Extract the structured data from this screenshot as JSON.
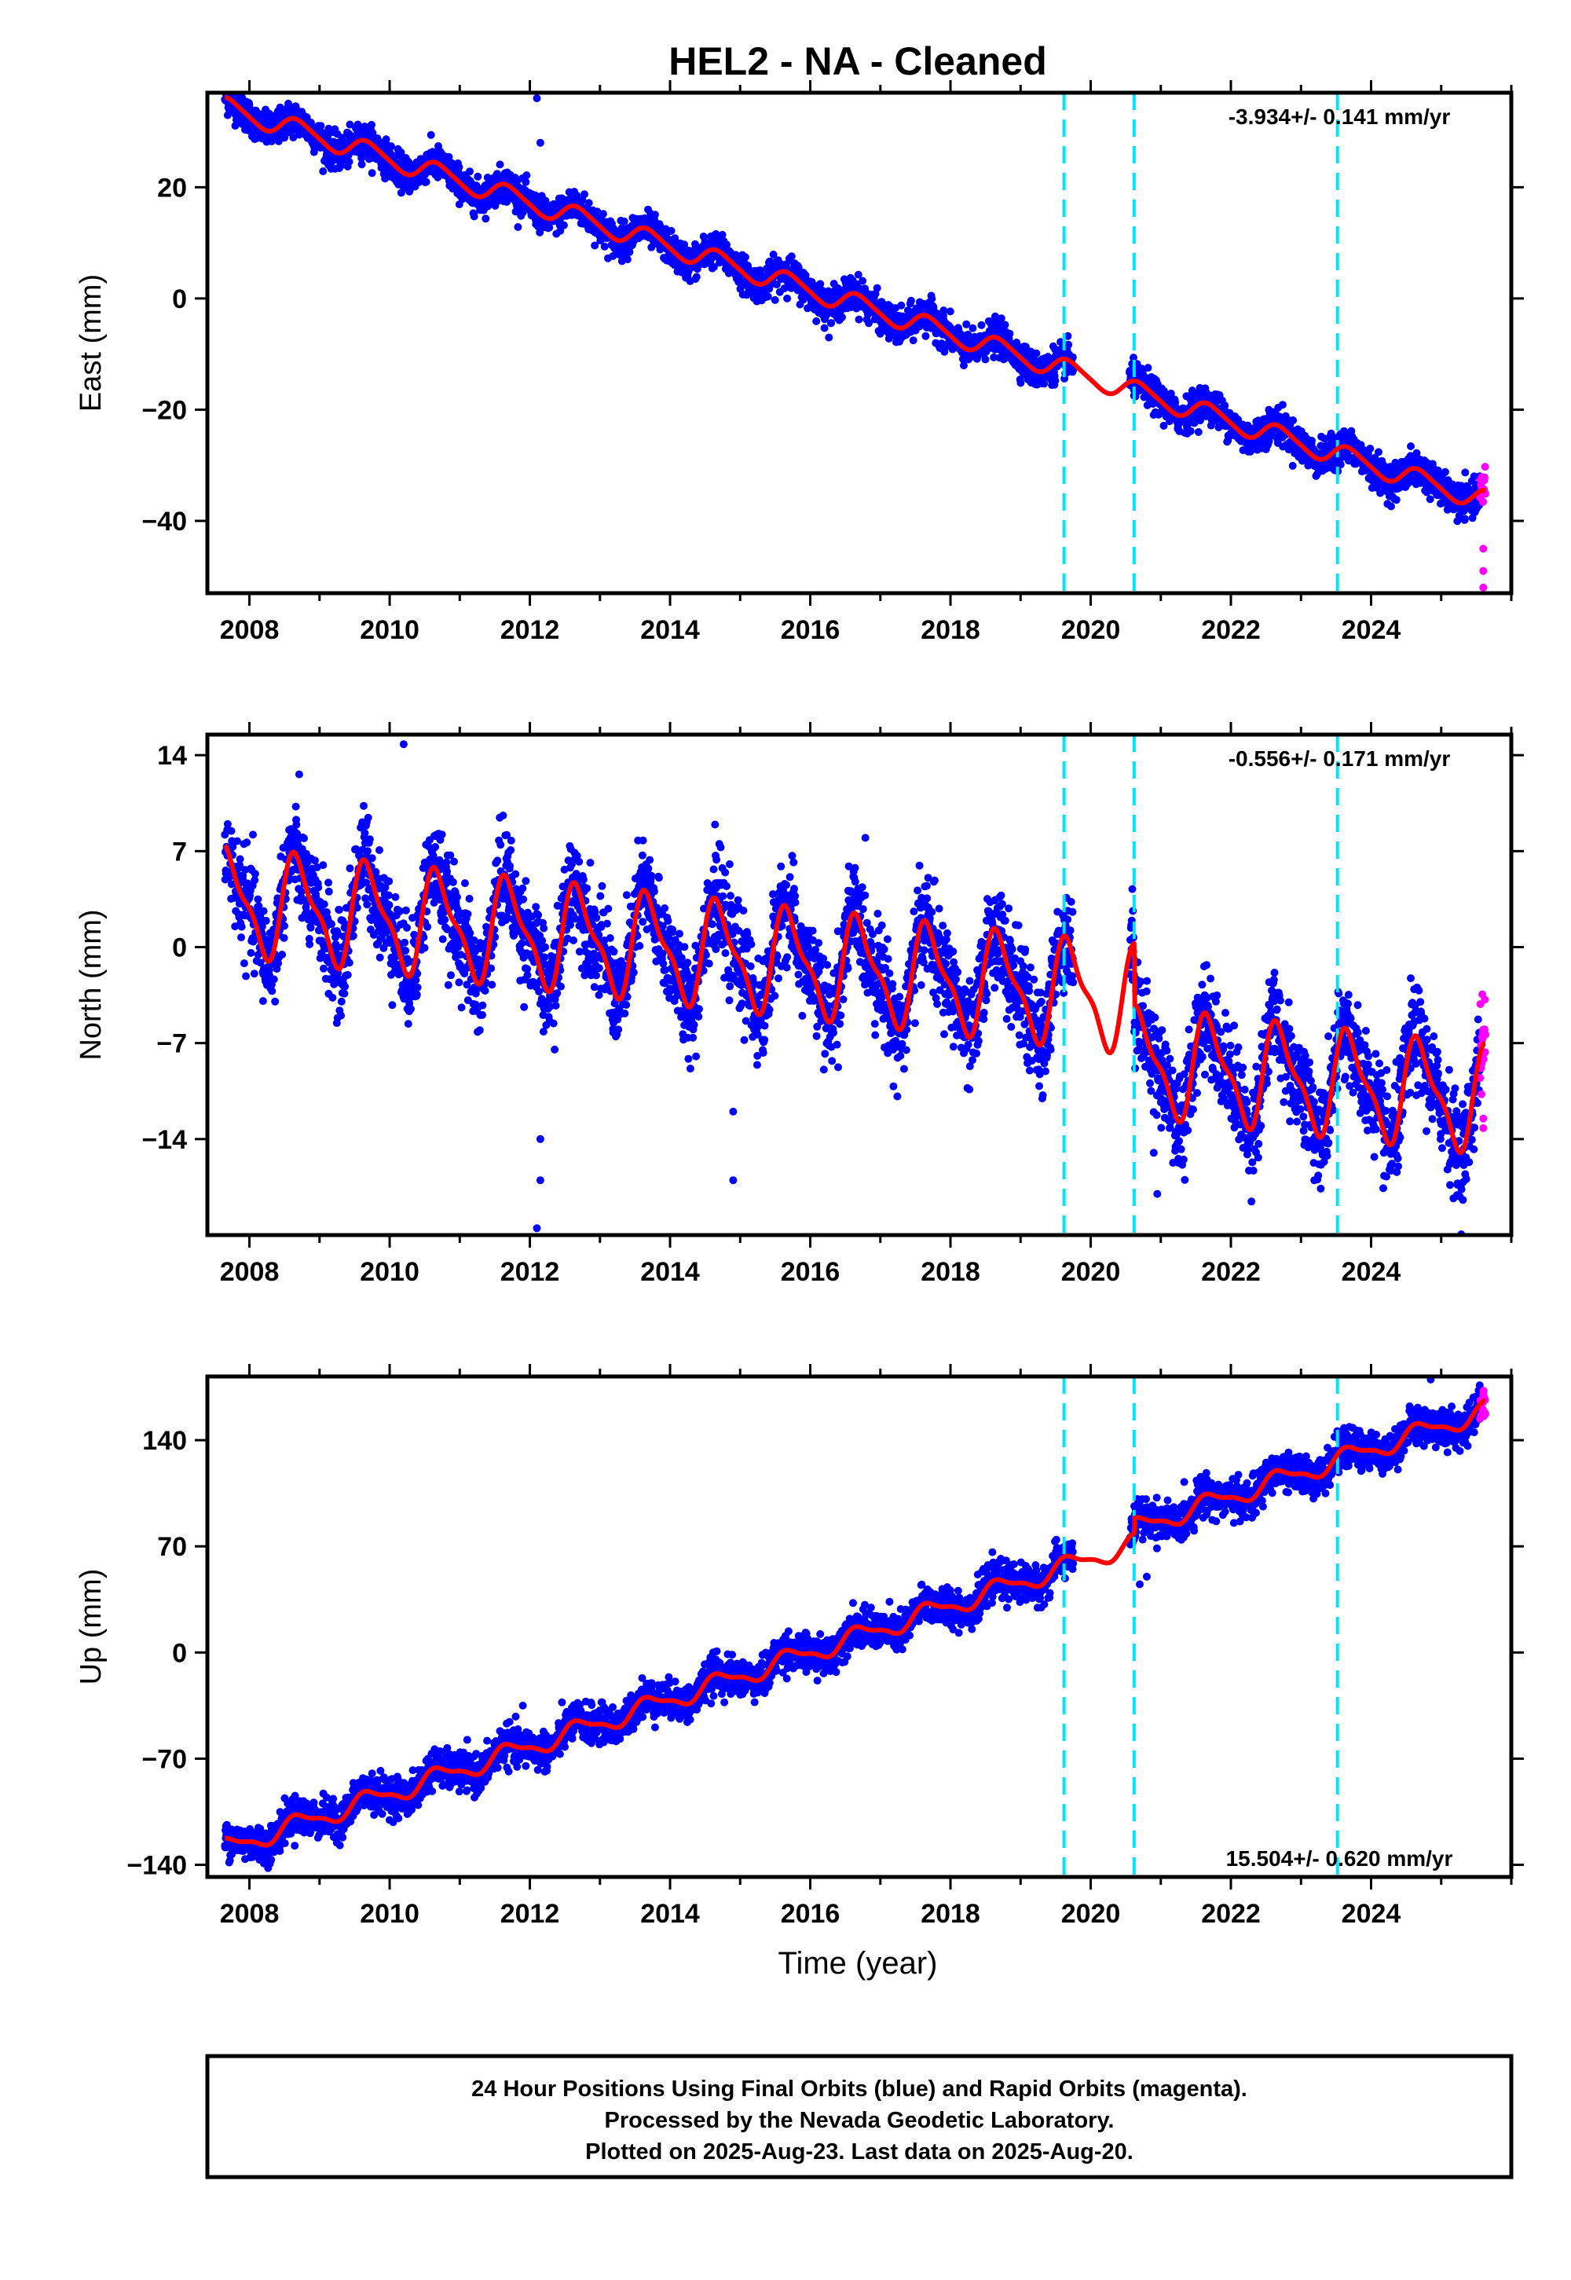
{
  "title": "HEL2  - NA - Cleaned",
  "x_axis_label": "Time (year)",
  "footer": {
    "line1": "24 Hour Positions Using Final Orbits (blue) and Rapid Orbits (magenta).",
    "line2": "Processed by the Nevada Geodetic Laboratory.",
    "line3": "Plotted on 2025-Aug-23. Last data on 2025-Aug-20."
  },
  "colors": {
    "final_orbits": "#0000ff",
    "rapid_orbits": "#ff00ff",
    "model_fit": "#ff0000",
    "equipment_change": "#00e5ff"
  },
  "chart_data": [
    {
      "type": "scatter",
      "panel": "east",
      "ylabel": "East (mm)",
      "rate_label": "-3.934+/- 0.141 mm/yr",
      "xlim": [
        2007.4,
        2026.0
      ],
      "ylim": [
        -53,
        37
      ],
      "xticks": [
        2008,
        2010,
        2012,
        2014,
        2016,
        2018,
        2020,
        2022,
        2024
      ],
      "yticks": [
        -40,
        -20,
        0,
        20
      ],
      "data_start": 2007.65,
      "data_gap": [
        2019.75,
        2020.55
      ],
      "rapid_start": 2025.55,
      "data_end": 2025.63,
      "model": {
        "trend_mm_per_yr": -3.934,
        "value_at_2008": 33.0,
        "annual_amp": 1.8,
        "annual_phase": 0.45,
        "semiannual_amp": 0.3,
        "offsets": []
      },
      "noise_mm": 1.5,
      "outliers": [
        [
          2012.1,
          36
        ],
        [
          2012.15,
          28
        ],
        [
          2009.3,
          25
        ],
        [
          2025.6,
          -49
        ],
        [
          2025.6,
          -52
        ],
        [
          2025.6,
          -45
        ]
      ],
      "equipment_changes": [
        2019.62,
        2020.62,
        2023.52
      ]
    },
    {
      "type": "scatter",
      "panel": "north",
      "ylabel": "North (mm)",
      "rate_label": "-0.556+/- 0.171 mm/yr",
      "xlim": [
        2007.4,
        2026.0
      ],
      "ylim": [
        -21,
        15.5
      ],
      "xticks": [
        2008,
        2010,
        2012,
        2014,
        2016,
        2018,
        2020,
        2022,
        2024
      ],
      "yticks": [
        -14,
        -7,
        0,
        7,
        14
      ],
      "data_start": 2007.65,
      "data_gap": [
        2019.75,
        2020.55
      ],
      "rapid_start": 2025.55,
      "data_end": 2025.63,
      "model": {
        "trend_mm_per_yr": -0.556,
        "value_at_2008": 3.2,
        "annual_amp": 3.5,
        "annual_phase": 0.45,
        "semiannual_amp": 1.2,
        "offsets": [
          [
            2020.62,
            -4.5
          ]
        ]
      },
      "noise_mm": 1.8,
      "outliers": [
        [
          2010.2,
          14.8
        ],
        [
          2012.15,
          -14
        ],
        [
          2012.15,
          -17
        ],
        [
          2012.1,
          -20.5
        ],
        [
          2014.9,
          -12
        ],
        [
          2014.9,
          -17
        ],
        [
          2020.9,
          -15
        ],
        [
          2020.95,
          -18
        ],
        [
          2024.3,
          -14.5
        ],
        [
          2025.6,
          -12.5
        ],
        [
          2025.6,
          -13.2
        ]
      ],
      "equipment_changes": [
        2019.62,
        2020.62,
        2023.52
      ]
    },
    {
      "type": "scatter",
      "panel": "up",
      "ylabel": "Up (mm)",
      "rate_label": "15.504+/- 0.620 mm/yr",
      "xlim": [
        2007.4,
        2026.0
      ],
      "ylim": [
        -148,
        182
      ],
      "xticks": [
        2008,
        2010,
        2012,
        2014,
        2016,
        2018,
        2020,
        2022,
        2024
      ],
      "yticks": [
        -140,
        -70,
        0,
        70,
        140
      ],
      "data_start": 2007.65,
      "data_gap": [
        2019.75,
        2020.55
      ],
      "rapid_start": 2025.55,
      "data_end": 2025.63,
      "model": {
        "trend_mm_per_yr": 15.504,
        "value_at_2008": -124,
        "annual_amp": 6,
        "annual_phase": 0.45,
        "semiannual_amp": 2,
        "offsets": [
          [
            2020.62,
            10
          ]
        ]
      },
      "noise_mm": 6,
      "outliers": [
        [
          2011.9,
          -35
        ],
        [
          2013.5,
          -32
        ],
        [
          2020.7,
          45
        ],
        [
          2020.8,
          50
        ],
        [
          2024.85,
          180
        ],
        [
          2025.6,
          170
        ]
      ],
      "equipment_changes": [
        2019.62,
        2020.62,
        2023.52
      ]
    }
  ]
}
